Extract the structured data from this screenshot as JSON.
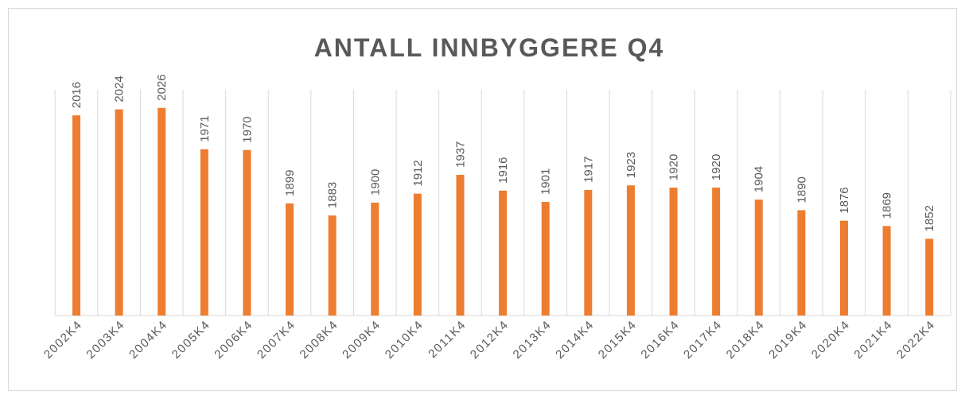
{
  "chart_data": {
    "type": "bar",
    "title": "ANTALL INNBYGGERE Q4",
    "categories": [
      "2002K4",
      "2003K4",
      "2004K4",
      "2005K4",
      "2006K4",
      "2007K4",
      "2008K4",
      "2009K4",
      "2010K4",
      "2011K4",
      "2012K4",
      "2013K4",
      "2014K4",
      "2015K4",
      "2016K4",
      "2017K4",
      "2018K4",
      "2019K4",
      "2020K4",
      "2021K4",
      "2022K4"
    ],
    "values": [
      2016,
      2024,
      2026,
      1971,
      1970,
      1899,
      1883,
      1900,
      1912,
      1937,
      1916,
      1901,
      1917,
      1923,
      1920,
      1920,
      1904,
      1890,
      1876,
      1869,
      1852
    ],
    "color": "#ed7d31",
    "ylim": [
      1750,
      2050
    ],
    "grid": true
  }
}
